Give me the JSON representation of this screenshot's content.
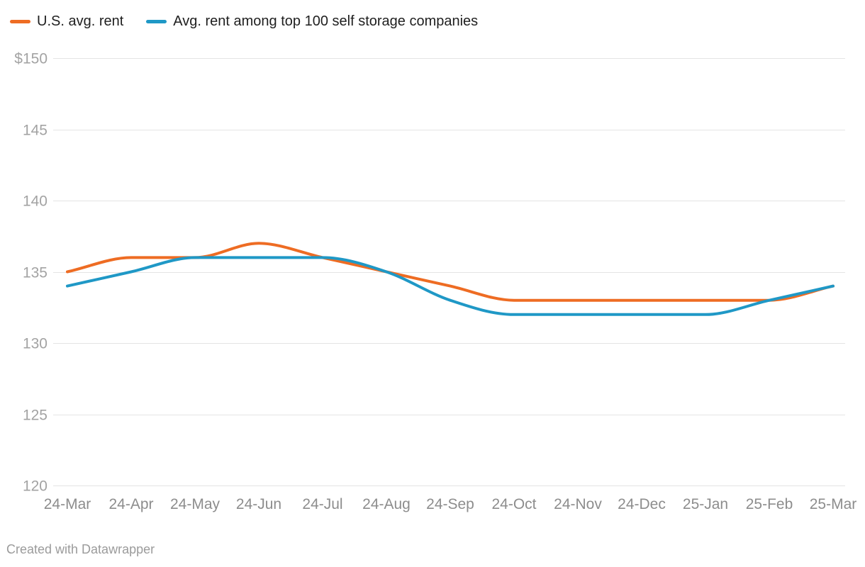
{
  "footer": {
    "credit": "Created with Datawrapper"
  },
  "chart_data": {
    "type": "line",
    "title": "",
    "xlabel": "",
    "ylabel": "",
    "legend_position": "top-left",
    "grid": "horizontal",
    "ylim": [
      120,
      150
    ],
    "categories": [
      "24-Mar",
      "24-Apr",
      "24-May",
      "24-Jun",
      "24-Jul",
      "24-Aug",
      "24-Sep",
      "24-Oct",
      "24-Nov",
      "24-Dec",
      "25-Jan",
      "25-Feb",
      "25-Mar"
    ],
    "y_ticks": [
      {
        "label": "$150",
        "value": 150
      },
      {
        "label": "145",
        "value": 145
      },
      {
        "label": "140",
        "value": 140
      },
      {
        "label": "135",
        "value": 135
      },
      {
        "label": "130",
        "value": 130
      },
      {
        "label": "125",
        "value": 125
      },
      {
        "label": "120",
        "value": 120
      }
    ],
    "series": [
      {
        "name": "U.S. avg. rent",
        "color": "#ee6c23",
        "values": [
          135,
          136,
          136,
          137,
          136,
          135,
          134,
          133,
          133,
          133,
          133,
          133,
          134
        ]
      },
      {
        "name": "Avg. rent among top 100 self storage companies",
        "color": "#1f98c6",
        "values": [
          134,
          135,
          136,
          136,
          136,
          135,
          133,
          132,
          132,
          132,
          132,
          133,
          134
        ]
      }
    ]
  }
}
